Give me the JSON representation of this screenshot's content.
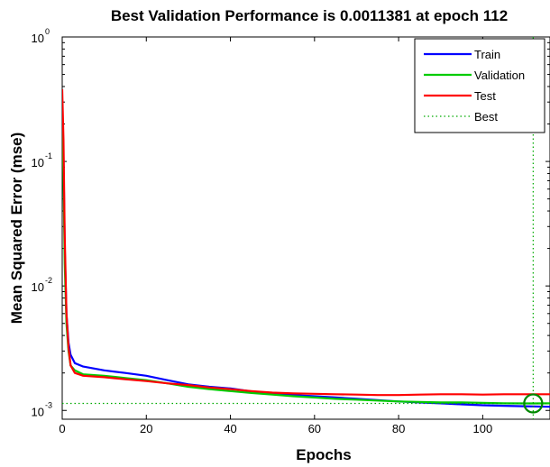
{
  "chart_data": {
    "type": "line",
    "title": "Best Validation Performance is 0.0011381 at epoch 112",
    "xlabel": "Epochs",
    "xlabel_visible_prefix": "",
    "ylabel": "Mean Squared Error  (mse)",
    "xlim": [
      0,
      116
    ],
    "ylim": [
      0.00085,
      1
    ],
    "yscale": "log",
    "xticks": [
      0,
      20,
      40,
      60,
      80,
      100
    ],
    "yticks": [
      {
        "value": 0.001,
        "base": "10",
        "exp": "-3"
      },
      {
        "value": 0.01,
        "base": "10",
        "exp": "-2"
      },
      {
        "value": 0.1,
        "base": "10",
        "exp": "-1"
      },
      {
        "value": 1,
        "base": "10",
        "exp": "0"
      }
    ],
    "legend_position": "top-right",
    "series": [
      {
        "name": "Train",
        "color": "#0000ff",
        "points": [
          [
            0,
            0.25
          ],
          [
            0.3,
            0.11
          ],
          [
            0.6,
            0.02
          ],
          [
            1,
            0.006
          ],
          [
            1.5,
            0.0035
          ],
          [
            2,
            0.0028
          ],
          [
            3,
            0.0024
          ],
          [
            5,
            0.00225
          ],
          [
            10,
            0.0021
          ],
          [
            15,
            0.002
          ],
          [
            20,
            0.0019
          ],
          [
            25,
            0.00175
          ],
          [
            30,
            0.00162
          ],
          [
            35,
            0.00155
          ],
          [
            40,
            0.0015
          ],
          [
            45,
            0.00142
          ],
          [
            50,
            0.00138
          ],
          [
            55,
            0.00133
          ],
          [
            60,
            0.0013
          ],
          [
            65,
            0.00127
          ],
          [
            70,
            0.00124
          ],
          [
            75,
            0.00121
          ],
          [
            80,
            0.00118
          ],
          [
            85,
            0.00116
          ],
          [
            90,
            0.00114
          ],
          [
            95,
            0.00112
          ],
          [
            100,
            0.0011
          ],
          [
            105,
            0.00109
          ],
          [
            110,
            0.00108
          ],
          [
            116,
            0.00107
          ]
        ]
      },
      {
        "name": "Validation",
        "color": "#00cc00",
        "points": [
          [
            0,
            0.2
          ],
          [
            0.3,
            0.08
          ],
          [
            0.6,
            0.015
          ],
          [
            1,
            0.005
          ],
          [
            1.5,
            0.003
          ],
          [
            2,
            0.0023
          ],
          [
            3,
            0.0021
          ],
          [
            5,
            0.00195
          ],
          [
            10,
            0.0019
          ],
          [
            15,
            0.00182
          ],
          [
            20,
            0.00175
          ],
          [
            25,
            0.00165
          ],
          [
            30,
            0.00155
          ],
          [
            35,
            0.00148
          ],
          [
            40,
            0.00143
          ],
          [
            45,
            0.00138
          ],
          [
            50,
            0.00134
          ],
          [
            55,
            0.0013
          ],
          [
            60,
            0.00127
          ],
          [
            65,
            0.00124
          ],
          [
            70,
            0.00122
          ],
          [
            75,
            0.0012
          ],
          [
            80,
            0.00118
          ],
          [
            85,
            0.00117
          ],
          [
            90,
            0.00116
          ],
          [
            95,
            0.00116
          ],
          [
            100,
            0.00115
          ],
          [
            105,
            0.00114
          ],
          [
            112,
            0.0011381
          ],
          [
            116,
            0.00114
          ]
        ]
      },
      {
        "name": "Test",
        "color": "#ff0000",
        "points": [
          [
            0,
            0.38
          ],
          [
            0.3,
            0.15
          ],
          [
            0.6,
            0.025
          ],
          [
            1,
            0.006
          ],
          [
            1.5,
            0.0032
          ],
          [
            2,
            0.0023
          ],
          [
            3,
            0.002
          ],
          [
            5,
            0.0019
          ],
          [
            10,
            0.00185
          ],
          [
            15,
            0.00178
          ],
          [
            20,
            0.00172
          ],
          [
            25,
            0.00165
          ],
          [
            30,
            0.0016
          ],
          [
            35,
            0.00153
          ],
          [
            40,
            0.00148
          ],
          [
            45,
            0.00143
          ],
          [
            50,
            0.00139
          ],
          [
            55,
            0.00137
          ],
          [
            60,
            0.00136
          ],
          [
            65,
            0.00135
          ],
          [
            70,
            0.00134
          ],
          [
            75,
            0.00133
          ],
          [
            80,
            0.00133
          ],
          [
            85,
            0.00134
          ],
          [
            90,
            0.00135
          ],
          [
            95,
            0.00135
          ],
          [
            100,
            0.00134
          ],
          [
            105,
            0.00135
          ],
          [
            110,
            0.00135
          ],
          [
            116,
            0.00135
          ]
        ]
      }
    ],
    "best": {
      "name": "Best",
      "epoch": 112,
      "value": 0.0011381,
      "color": "#00aa00"
    }
  }
}
